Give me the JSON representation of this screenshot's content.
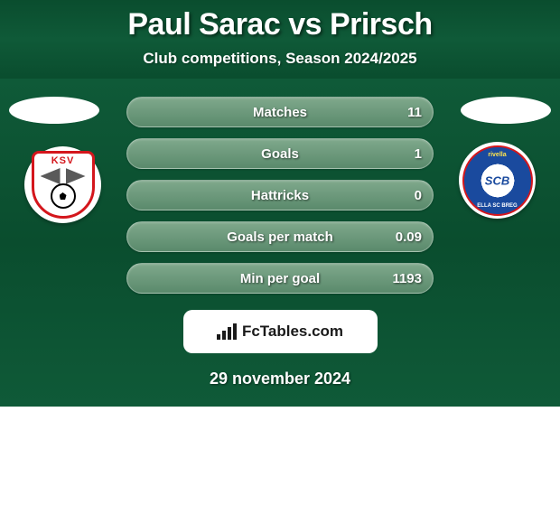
{
  "title": "Paul Sarac vs Prirsch",
  "subtitle": "Club competitions, Season 2024/2025",
  "stats": [
    {
      "label": "Matches",
      "value": "11"
    },
    {
      "label": "Goals",
      "value": "1"
    },
    {
      "label": "Hattricks",
      "value": "0"
    },
    {
      "label": "Goals per match",
      "value": "0.09"
    },
    {
      "label": "Min per goal",
      "value": "1193"
    }
  ],
  "left_club": {
    "code": "KSV",
    "primary_color": "#d4161c",
    "secondary_color": "#ffffff"
  },
  "right_club": {
    "code": "SCB",
    "top_text": "rivella",
    "bottom_text": "ELLA SC BREG",
    "primary_color": "#1a4a9e",
    "accent_color": "#d4161c"
  },
  "branding": {
    "text": "FcTables.com"
  },
  "date": "29 november 2024",
  "colors": {
    "bg_green_dark": "#0a4d2e",
    "bg_green_mid": "#0f5a38",
    "pill_top": "#7fa88c",
    "pill_bottom": "#5a8a6c",
    "text": "#ffffff"
  }
}
